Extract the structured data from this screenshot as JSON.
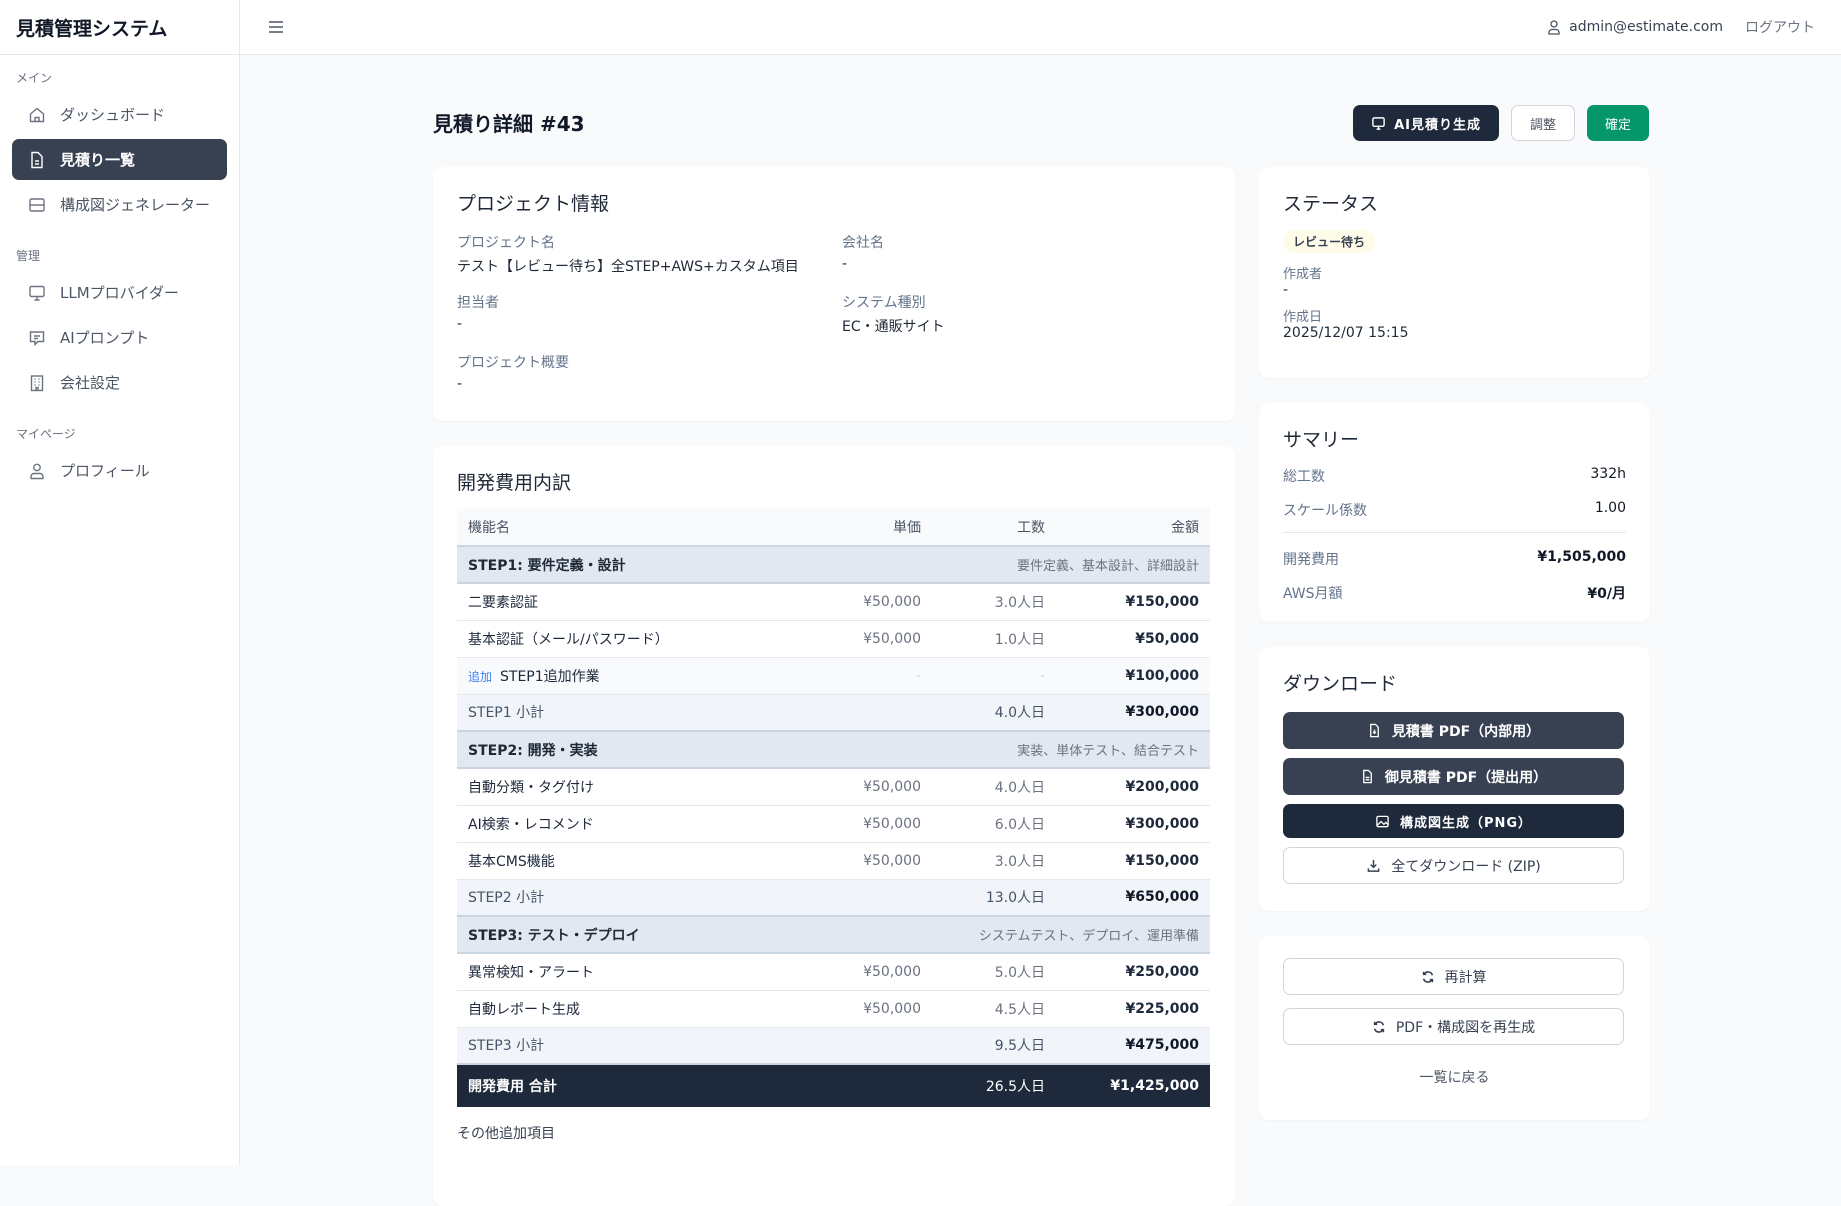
{
  "app": {
    "title": "見積管理システム"
  },
  "sidebar": {
    "sections": [
      {
        "label": "メイン",
        "items": [
          {
            "label": "ダッシュボード",
            "icon": "home-icon"
          },
          {
            "label": "見積り一覧",
            "icon": "document-icon",
            "active": true
          },
          {
            "label": "構成図ジェネレーター",
            "icon": "diagram-icon"
          }
        ]
      },
      {
        "label": "管理",
        "items": [
          {
            "label": "LLMプロバイダー",
            "icon": "monitor-icon"
          },
          {
            "label": "AIプロンプト",
            "icon": "chat-icon"
          },
          {
            "label": "会社設定",
            "icon": "building-icon"
          }
        ]
      },
      {
        "label": "マイページ",
        "items": [
          {
            "label": "プロフィール",
            "icon": "user-icon"
          }
        ]
      }
    ]
  },
  "header": {
    "user_email": "admin@estimate.com",
    "logout_label": "ログアウト"
  },
  "page": {
    "title": "見積り詳細 #43",
    "ai_button": "AI見積り生成",
    "adjust_button": "調整",
    "confirm_button": "確定"
  },
  "project": {
    "title": "プロジェクト情報",
    "fields": [
      {
        "label": "プロジェクト名",
        "value": "テスト【レビュー待ち】全STEP+AWS+カスタム項目"
      },
      {
        "label": "会社名",
        "value": "-"
      },
      {
        "label": "担当者",
        "value": "-"
      },
      {
        "label": "システム種別",
        "value": "EC・通販サイト"
      },
      {
        "label": "プロジェクト概要",
        "value": "-"
      }
    ]
  },
  "cost": {
    "title": "開発費用内訳",
    "columns": [
      "機能名",
      "単価",
      "工数",
      "金額"
    ],
    "steps": [
      {
        "name": "STEP1: 要件定義・設計",
        "desc": "要件定義、基本設計、詳細設計",
        "rows": [
          {
            "name": "二要素認証",
            "price": "¥50,000",
            "hours": "3.0人日",
            "amount": "¥150,000"
          },
          {
            "name": "基本認証（メール/パスワード）",
            "price": "¥50,000",
            "hours": "1.0人日",
            "amount": "¥50,000"
          },
          {
            "tag": "追加",
            "name": "STEP1追加作業",
            "price": "-",
            "hours": "-",
            "amount": "¥100,000"
          }
        ],
        "subtotal": {
          "label": "STEP1 小計",
          "hours": "4.0人日",
          "amount": "¥300,000"
        }
      },
      {
        "name": "STEP2: 開発・実装",
        "desc": "実装、単体テスト、結合テスト",
        "rows": [
          {
            "name": "自動分類・タグ付け",
            "price": "¥50,000",
            "hours": "4.0人日",
            "amount": "¥200,000"
          },
          {
            "name": "AI検索・レコメンド",
            "price": "¥50,000",
            "hours": "6.0人日",
            "amount": "¥300,000"
          },
          {
            "name": "基本CMS機能",
            "price": "¥50,000",
            "hours": "3.0人日",
            "amount": "¥150,000"
          }
        ],
        "subtotal": {
          "label": "STEP2 小計",
          "hours": "13.0人日",
          "amount": "¥650,000"
        }
      },
      {
        "name": "STEP3: テスト・デプロイ",
        "desc": "システムテスト、デプロイ、運用準備",
        "rows": [
          {
            "name": "異常検知・アラート",
            "price": "¥50,000",
            "hours": "5.0人日",
            "amount": "¥250,000"
          },
          {
            "name": "自動レポート生成",
            "price": "¥50,000",
            "hours": "4.5人日",
            "amount": "¥225,000"
          }
        ],
        "subtotal": {
          "label": "STEP3 小計",
          "hours": "9.5人日",
          "amount": "¥475,000"
        }
      }
    ],
    "total": {
      "label": "開発費用 合計",
      "hours": "26.5人日",
      "amount": "¥1,425,000"
    },
    "other_label": "その他追加項目"
  },
  "status": {
    "title": "ステータス",
    "badge": "レビュー待ち",
    "badge_color": "#fefce8",
    "creator_label": "作成者",
    "creator": "-",
    "created_label": "作成日",
    "created": "2025/12/07 15:15"
  },
  "summary": {
    "title": "サマリー",
    "rows": [
      {
        "label": "総工数",
        "value": "332h"
      },
      {
        "label": "スケール係数",
        "value": "1.00"
      },
      {
        "label": "開発費用",
        "value": "¥1,505,000"
      },
      {
        "label": "AWS月額",
        "value": "¥0/月"
      }
    ]
  },
  "download": {
    "title": "ダウンロード",
    "buttons": [
      "見積書 PDF（内部用）",
      "御見積書 PDF（提出用）",
      "構成図生成（PNG）",
      "全てダウンロード (ZIP)"
    ]
  },
  "actions": {
    "recalc": "再計算",
    "regen": "PDF・構成図を再生成",
    "back": "一覧に戻る"
  },
  "colors": {
    "accent_green": "#059669",
    "dark": "#1e293b",
    "sidebar_active": "#374151"
  }
}
